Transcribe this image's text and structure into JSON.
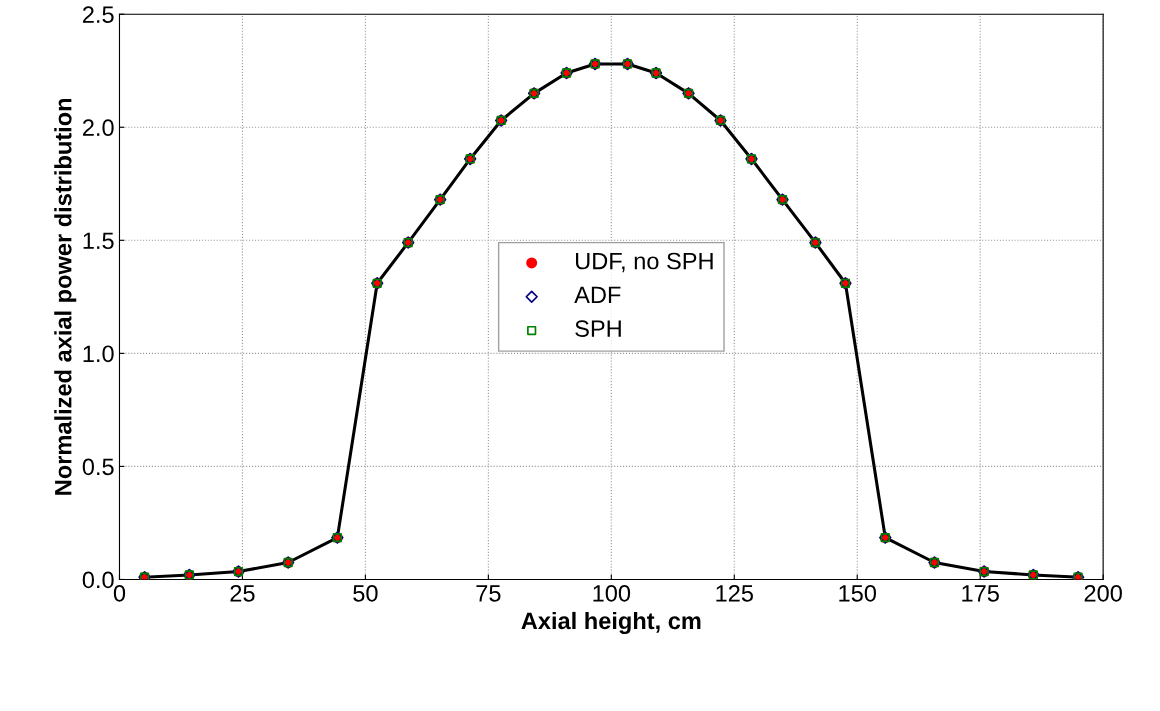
{
  "chart_data": {
    "type": "line",
    "xlabel": "Axial height, cm",
    "ylabel": "Normalized axial power distribution",
    "x": [
      5.1,
      14.2,
      24.2,
      34.3,
      44.3,
      52.4,
      58.7,
      65.2,
      71.3,
      77.6,
      84.3,
      90.9,
      96.7,
      103.3,
      109.1,
      115.7,
      122.2,
      128.5,
      134.8,
      141.5,
      147.6,
      155.7,
      165.7,
      175.8,
      185.8,
      194.9
    ],
    "series": [
      {
        "color": "#000000",
        "marker": "none",
        "line_style": "solid",
        "values": [
          0.01,
          0.02,
          0.035,
          0.075,
          0.185,
          1.31,
          1.49,
          1.68,
          1.86,
          2.03,
          2.15,
          2.24,
          2.28,
          2.28,
          2.24,
          2.15,
          2.03,
          1.86,
          1.68,
          1.49,
          1.31,
          0.185,
          0.075,
          0.035,
          0.02,
          0.01
        ]
      },
      {
        "type": "scatter",
        "name": "UDF, no SPH",
        "color": "#ff0000",
        "marker": "circle",
        "values": [
          0.01,
          0.02,
          0.035,
          0.075,
          0.185,
          1.31,
          1.49,
          1.68,
          1.86,
          2.03,
          2.15,
          2.24,
          2.28,
          2.28,
          2.24,
          2.15,
          2.03,
          1.86,
          1.68,
          1.49,
          1.31,
          0.185,
          0.075,
          0.035,
          0.02,
          0.01
        ]
      },
      {
        "type": "scatter",
        "name": "ADF",
        "color": "#000080",
        "marker": "diamond",
        "values": [
          0.01,
          0.02,
          0.035,
          0.075,
          0.185,
          1.31,
          1.49,
          1.68,
          1.86,
          2.03,
          2.15,
          2.24,
          2.28,
          2.28,
          2.24,
          2.15,
          2.03,
          1.86,
          1.68,
          1.49,
          1.31,
          0.185,
          0.075,
          0.035,
          0.02,
          0.01
        ]
      },
      {
        "type": "scatter",
        "name": "SPH",
        "color": "#008000",
        "marker": "square",
        "values": [
          0.01,
          0.02,
          0.035,
          0.075,
          0.185,
          1.31,
          1.49,
          1.68,
          1.86,
          2.03,
          2.15,
          2.24,
          2.28,
          2.28,
          2.24,
          2.15,
          2.03,
          1.86,
          1.68,
          1.49,
          1.31,
          0.185,
          0.075,
          0.035,
          0.02,
          0.01
        ]
      }
    ],
    "xlim": [
      0,
      200
    ],
    "xticks": [
      0,
      25,
      50,
      75,
      100,
      125,
      150,
      175,
      200
    ],
    "ylim": [
      0,
      2.5
    ],
    "yticks": [
      {
        "value": 0,
        "label": "0.0"
      },
      {
        "value": 0.5,
        "label": "0.5"
      },
      {
        "value": 1,
        "label": "1.0"
      },
      {
        "value": 1.5,
        "label": "1.5"
      },
      {
        "value": 2,
        "label": "2.0"
      },
      {
        "value": 2.5,
        "label": "2.5"
      }
    ],
    "grid": true,
    "legend": "center"
  }
}
